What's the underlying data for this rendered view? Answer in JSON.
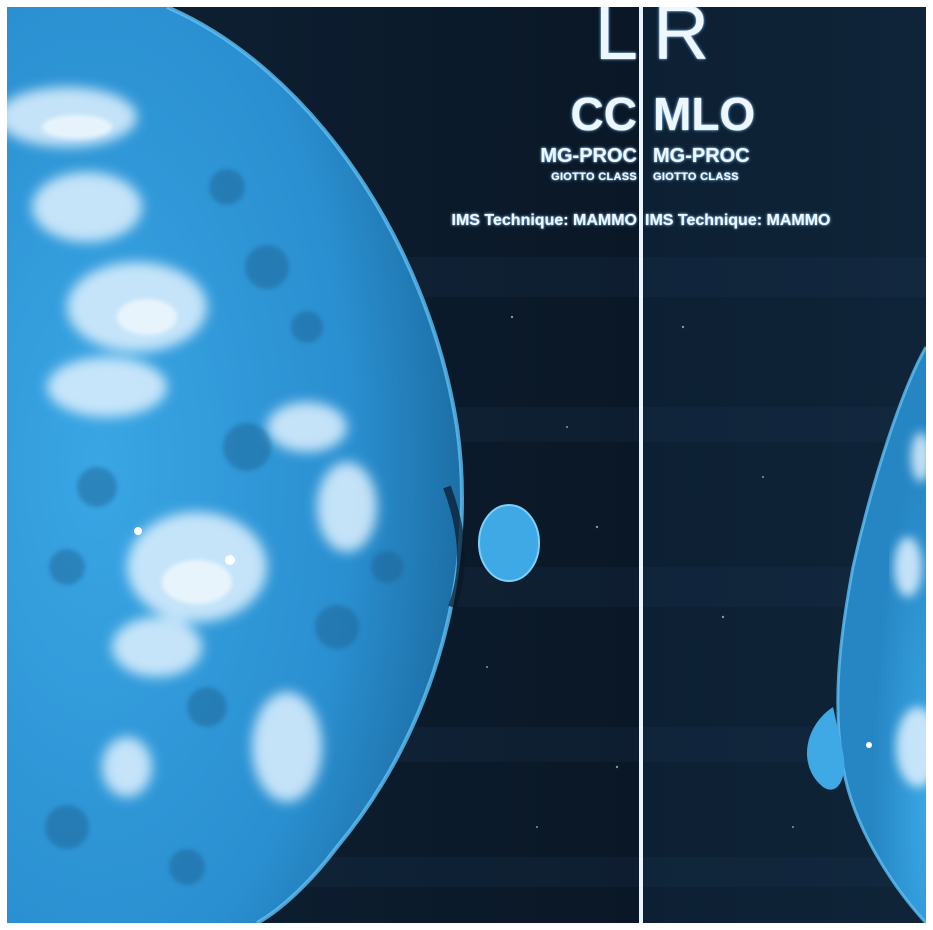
{
  "left_panel": {
    "laterality": "L",
    "view": "CC",
    "procedure": "MG-PROC",
    "device": "GIOTTO CLASS",
    "technique": "IMS Technique: MAMMO"
  },
  "right_panel": {
    "laterality": "R",
    "view": "MLO",
    "procedure": "MG-PROC",
    "device": "GIOTTO CLASS",
    "technique": "IMS Technique: MAMMO"
  },
  "colors": {
    "background": "#0b1a2b",
    "tissue": "#2a8fd0",
    "dense_tissue": "#dff1ff",
    "divider": "#e8f4ff"
  }
}
